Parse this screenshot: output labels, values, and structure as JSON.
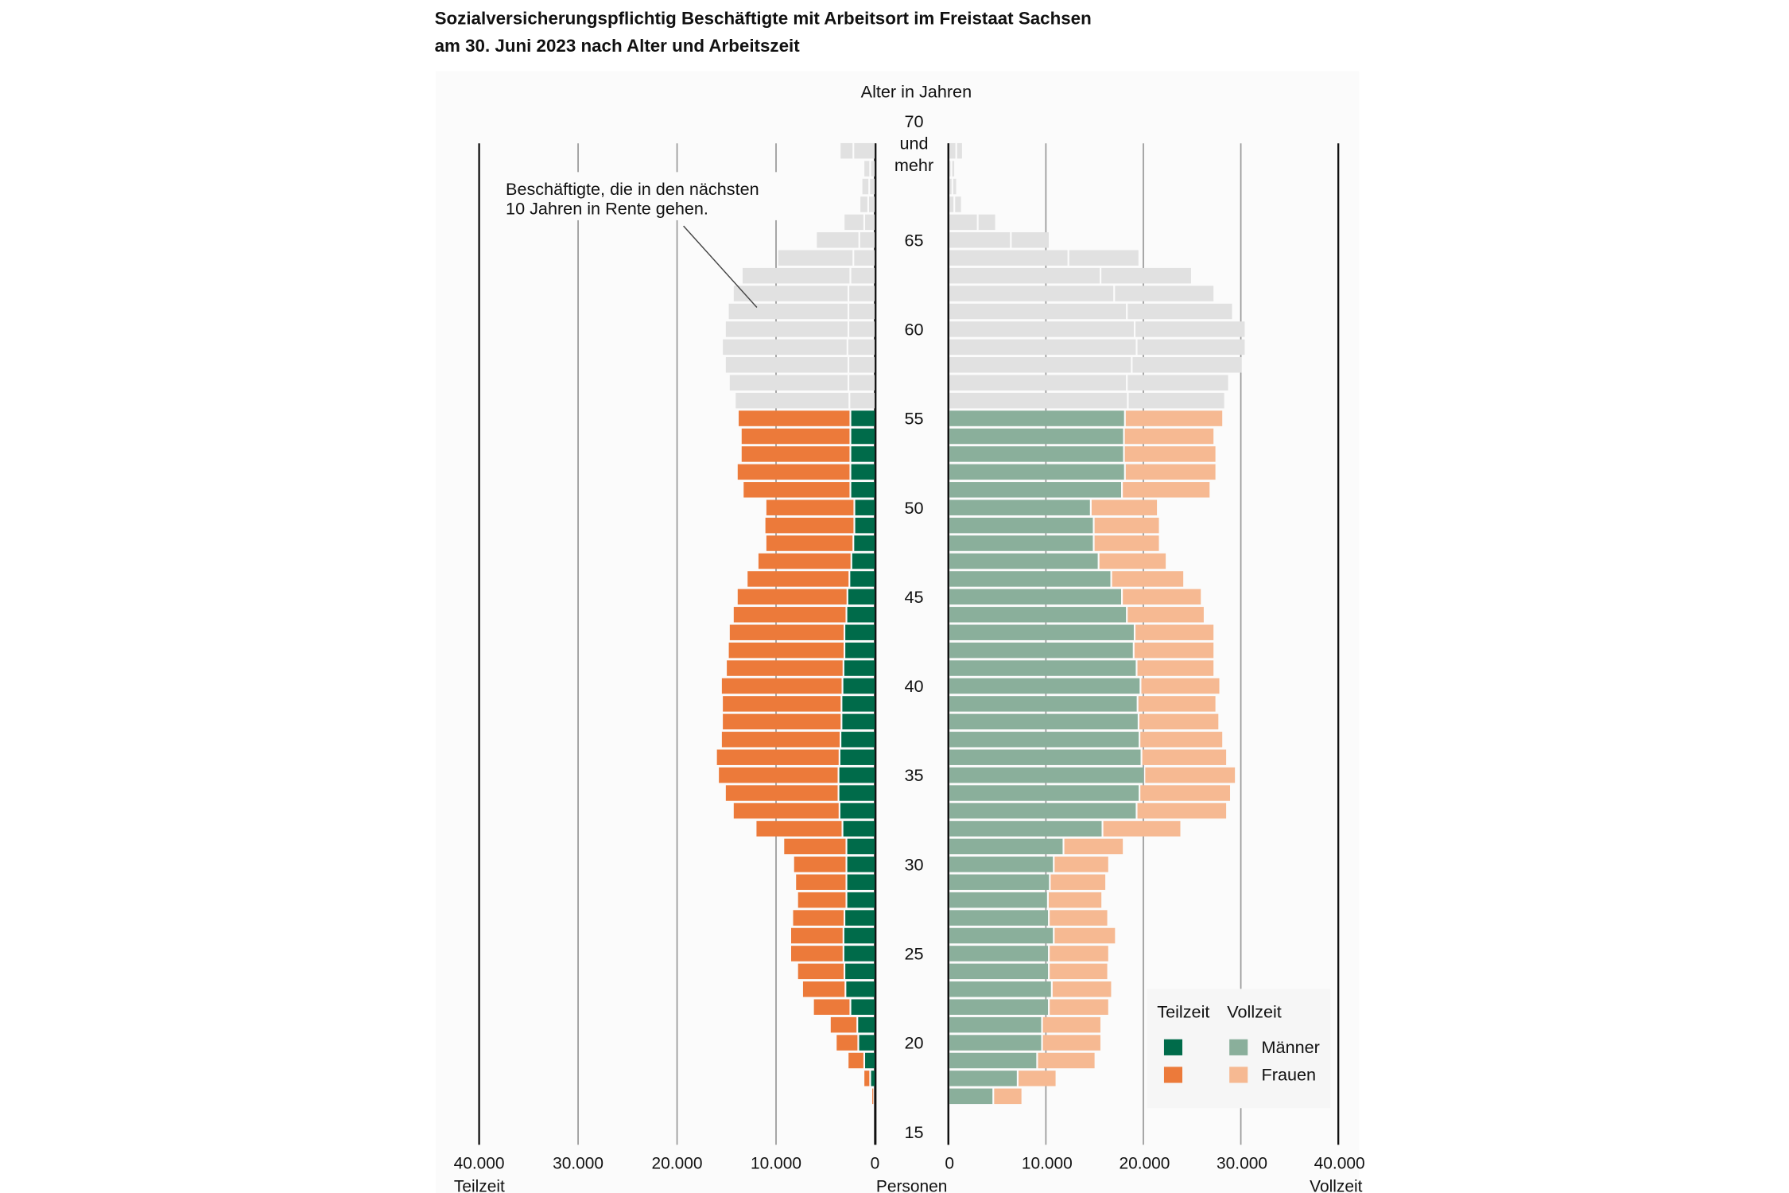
{
  "title_line1": "Sozialversicherungspflichtig Beschäftigte mit Arbeitsort im Freistaat Sachsen",
  "title_line2": "am 30. Juni 2023 nach Alter und Arbeitszeit",
  "chart_data": {
    "type": "bar",
    "orientation": "horizontal population pyramid",
    "title": "Sozialversicherungspflichtig Beschäftigte mit Arbeitsort im Freistaat Sachsen am 30. Juni 2023 nach Alter und Arbeitszeit",
    "ylabel": "Alter in Jahren",
    "xlabel": "Personen",
    "left_side_label": "Teilzeit",
    "right_side_label": "Vollzeit",
    "x_ticks_left": [
      "40.000",
      "30.000",
      "20.000",
      "10.000",
      "0"
    ],
    "x_ticks_right": [
      "0",
      "10.000",
      "20.000",
      "30.000",
      "40.000"
    ],
    "xlim": [
      0,
      40000
    ],
    "y_ticks": [
      "15",
      "20",
      "25",
      "30",
      "35",
      "40",
      "45",
      "50",
      "55",
      "60",
      "65"
    ],
    "y_top_label": [
      "70",
      "und",
      "mehr"
    ],
    "grid": true,
    "annotation": [
      "Beschäftigte, die in den nächsten",
      "10 Jahren in Rente gehen."
    ],
    "legend": {
      "position": "bottom-right",
      "col_headers": [
        "Teilzeit",
        "Vollzeit"
      ],
      "rows": [
        "Männer",
        "Frauen"
      ]
    },
    "colors": {
      "teilzeit_maenner": "#006b4a",
      "teilzeit_frauen": "#ec7a3a",
      "vollzeit_maenner": "#8aaf9b",
      "vollzeit_frauen": "#f6b992",
      "rente_10_jahre": "#e1e1e1"
    },
    "series_keys": [
      "teilzeit_maenner",
      "teilzeit_frauen",
      "vollzeit_maenner",
      "vollzeit_frauen"
    ],
    "ages": [
      17,
      18,
      19,
      20,
      21,
      22,
      23,
      24,
      25,
      26,
      27,
      28,
      29,
      30,
      31,
      32,
      33,
      34,
      35,
      36,
      37,
      38,
      39,
      40,
      41,
      42,
      43,
      44,
      45,
      46,
      47,
      48,
      49,
      50,
      51,
      52,
      53,
      54,
      55,
      56,
      57,
      58,
      59,
      60,
      61,
      62,
      63,
      64,
      65,
      66,
      67,
      68,
      69,
      "70 und mehr"
    ],
    "teilzeit_maenner": [
      0,
      400,
      1000,
      1600,
      1700,
      2400,
      2900,
      3000,
      3100,
      3100,
      3000,
      2800,
      2800,
      2800,
      2800,
      3200,
      3500,
      3600,
      3600,
      3500,
      3400,
      3300,
      3300,
      3200,
      3100,
      3000,
      3000,
      2800,
      2700,
      2500,
      2300,
      2100,
      2000,
      2000,
      2400,
      2400,
      2400,
      2400,
      2400,
      2500,
      2600,
      2600,
      2700,
      2600,
      2600,
      2600,
      2400,
      2100,
      1500,
      1000,
      600,
      500,
      400,
      2100
    ],
    "teilzeit_frauen": [
      100,
      500,
      1500,
      2100,
      2600,
      3600,
      4200,
      4600,
      5200,
      5200,
      5100,
      4800,
      5000,
      5200,
      6200,
      8600,
      10600,
      11300,
      12000,
      12300,
      11900,
      11900,
      11900,
      12100,
      11700,
      11600,
      11500,
      11300,
      11000,
      10200,
      9300,
      8700,
      8900,
      8800,
      10700,
      11300,
      10900,
      10900,
      11200,
      11400,
      11900,
      12300,
      12500,
      12300,
      12000,
      11500,
      10800,
      7500,
      4200,
      1900,
      700,
      600,
      500,
      1200
    ],
    "vollzeit_maenner": [
      4400,
      6900,
      8900,
      9400,
      9400,
      10100,
      10400,
      10100,
      10100,
      10600,
      10100,
      10000,
      10200,
      10600,
      11600,
      15600,
      19100,
      19400,
      19900,
      19600,
      19400,
      19300,
      19200,
      19500,
      19100,
      18800,
      18900,
      18100,
      17600,
      16500,
      15200,
      14700,
      14700,
      14400,
      17600,
      17900,
      17800,
      17800,
      17900,
      18200,
      18100,
      18600,
      19100,
      18900,
      18100,
      16800,
      15400,
      12100,
      6200,
      2800,
      400,
      200,
      100,
      600
    ],
    "vollzeit_frauen": [
      2800,
      3800,
      5800,
      5900,
      5900,
      6000,
      6000,
      5900,
      6000,
      6200,
      5900,
      5400,
      5600,
      5500,
      6000,
      7900,
      9100,
      9200,
      9200,
      8600,
      8400,
      8100,
      7900,
      8000,
      7800,
      8100,
      8000,
      7800,
      8000,
      7300,
      6800,
      6600,
      6600,
      6700,
      8900,
      9200,
      9300,
      9100,
      9900,
      9800,
      10300,
      11200,
      11000,
      11200,
      10700,
      10100,
      9200,
      7100,
      3800,
      1700,
      600,
      300,
      200,
      500
    ]
  }
}
